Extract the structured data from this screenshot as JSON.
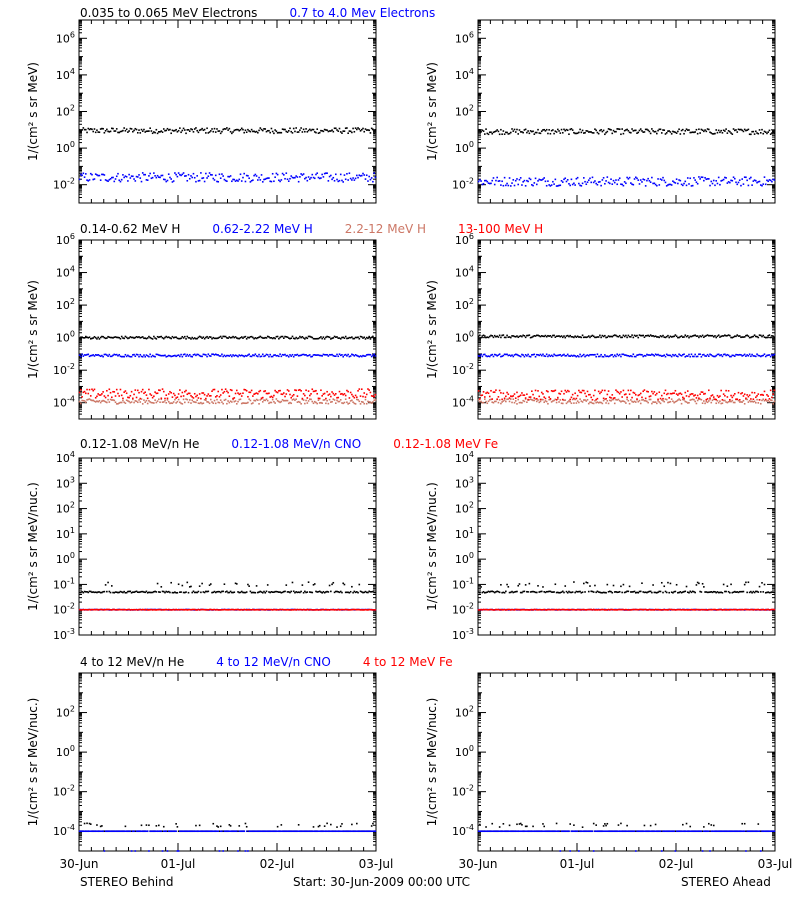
{
  "colors": {
    "black": "#000000",
    "blue": "#0000ff",
    "salmon": "#cc7766",
    "red": "#ff0000"
  },
  "x_ticks": [
    "30-Jun",
    "01-Jul",
    "02-Jul",
    "03-Jul"
  ],
  "footer": {
    "left": "STEREO Behind",
    "center": "Start: 30-Jun-2009 00:00 UTC",
    "right": "STEREO Ahead"
  },
  "chart_data": [
    {
      "type": "scatter",
      "row": "electrons",
      "ylabel": "1/(cm² s sr MeV)",
      "titles": [
        {
          "text": "0.035 to 0.065 MeV Electrons",
          "color": "#000000"
        },
        {
          "text": "0.7 to 4.0 Mev Electrons",
          "color": "#0000ff"
        }
      ],
      "yscale": "log",
      "ylim_exp": [
        -3,
        7
      ],
      "ytick_exp": [
        -2,
        0,
        2,
        4,
        6
      ],
      "xlim_days": [
        0,
        3
      ],
      "panels": [
        {
          "name": "STEREO Behind",
          "series": [
            {
              "name": "0.035 to 0.065 MeV Electrons",
              "color": "#000000",
              "level": 9,
              "spread": 0.15
            },
            {
              "name": "0.7 to 4.0 Mev Electrons",
              "color": "#0000ff",
              "level": 0.025,
              "spread": 0.25
            }
          ]
        },
        {
          "name": "STEREO Ahead",
          "series": [
            {
              "name": "0.035 to 0.065 MeV Electrons",
              "color": "#000000",
              "level": 8,
              "spread": 0.15
            },
            {
              "name": "0.7 to 4.0 Mev Electrons",
              "color": "#0000ff",
              "level": 0.015,
              "spread": 0.25
            }
          ]
        }
      ]
    },
    {
      "type": "scatter",
      "row": "protons",
      "ylabel": "1/(cm² s sr MeV)",
      "titles": [
        {
          "text": "0.14-0.62 MeV H",
          "color": "#000000"
        },
        {
          "text": "0.62-2.22 MeV H",
          "color": "#0000ff"
        },
        {
          "text": "2.2-12 MeV H",
          "color": "#cc7766"
        },
        {
          "text": "13-100 MeV H",
          "color": "#ff0000"
        }
      ],
      "yscale": "log",
      "ylim_exp": [
        -5,
        6
      ],
      "ytick_exp": [
        -4,
        -2,
        0,
        2,
        4,
        6
      ],
      "xlim_days": [
        0,
        3
      ],
      "panels": [
        {
          "name": "STEREO Behind",
          "series": [
            {
              "name": "0.14-0.62 MeV H",
              "color": "#000000",
              "level": 1.0,
              "spread": 0.08
            },
            {
              "name": "0.62-2.22 MeV H",
              "color": "#0000ff",
              "level": 0.08,
              "spread": 0.08
            },
            {
              "name": "2.2-12 MeV H",
              "color": "#cc7766",
              "level": 0.00012,
              "spread": 0.15
            },
            {
              "name": "13-100 MeV H",
              "color": "#ff0000",
              "level": 0.00035,
              "spread": 0.3
            }
          ]
        },
        {
          "name": "STEREO Ahead",
          "series": [
            {
              "name": "0.14-0.62 MeV H",
              "color": "#000000",
              "level": 1.2,
              "spread": 0.08
            },
            {
              "name": "0.62-2.22 MeV H",
              "color": "#0000ff",
              "level": 0.08,
              "spread": 0.08
            },
            {
              "name": "2.2-12 MeV H",
              "color": "#cc7766",
              "level": 0.00012,
              "spread": 0.15
            },
            {
              "name": "13-100 MeV H",
              "color": "#ff0000",
              "level": 0.0003,
              "spread": 0.3
            }
          ]
        }
      ]
    },
    {
      "type": "scatter",
      "row": "heavy_low",
      "ylabel": "1/(cm² s sr MeV/nuc.)",
      "titles": [
        {
          "text": "0.12-1.08 MeV/n He",
          "color": "#000000"
        },
        {
          "text": "0.12-1.08 MeV/n CNO",
          "color": "#0000ff"
        },
        {
          "text": "0.12-1.08 MeV Fe",
          "color": "#ff0000"
        }
      ],
      "yscale": "log",
      "ylim_exp": [
        -3,
        4
      ],
      "ytick_exp": [
        -3,
        -2,
        -1,
        0,
        1,
        2,
        3,
        4
      ],
      "xlim_days": [
        0,
        3
      ],
      "panels": [
        {
          "name": "STEREO Behind",
          "series": [
            {
              "name": "0.12-1.08 MeV/n He",
              "color": "#000000",
              "level": 0.05,
              "spread": 0.03,
              "upper": 0.1
            },
            {
              "name": "0.12-1.08 MeV/n CNO",
              "color": "#0000ff",
              "level": 0.01,
              "spread": 0.01
            },
            {
              "name": "0.12-1.08 MeV Fe",
              "color": "#ff0000",
              "level": 0.01,
              "spread": 0.01
            }
          ]
        },
        {
          "name": "STEREO Ahead",
          "series": [
            {
              "name": "0.12-1.08 MeV/n He",
              "color": "#000000",
              "level": 0.05,
              "spread": 0.03,
              "upper": 0.1
            },
            {
              "name": "0.12-1.08 MeV/n CNO",
              "color": "#0000ff",
              "level": 0.01,
              "spread": 0.01
            },
            {
              "name": "0.12-1.08 MeV Fe",
              "color": "#ff0000",
              "level": 0.01,
              "spread": 0.01
            }
          ]
        }
      ]
    },
    {
      "type": "scatter",
      "row": "heavy_high",
      "ylabel": "1/(cm² s sr MeV/nuc.)",
      "titles": [
        {
          "text": "4 to 12 MeV/n He",
          "color": "#000000"
        },
        {
          "text": "4 to 12 MeV/n CNO",
          "color": "#0000ff"
        },
        {
          "text": "4 to 12 MeV Fe",
          "color": "#ff0000"
        }
      ],
      "yscale": "log",
      "ylim_exp": [
        -5,
        4
      ],
      "ytick_exp": [
        -4,
        -2,
        0,
        2
      ],
      "xlim_days": [
        0,
        3
      ],
      "panels": [
        {
          "name": "STEREO Behind",
          "series": [
            {
              "name": "4 to 12 MeV/n He",
              "color": "#000000",
              "level": 0.0001,
              "spread": 0.0,
              "upper": 0.0002
            },
            {
              "name": "4 to 12 MeV/n CNO",
              "color": "#0000ff",
              "level": 0.0001,
              "spread": 0.0,
              "lower": 1e-05
            }
          ]
        },
        {
          "name": "STEREO Ahead",
          "series": [
            {
              "name": "4 to 12 MeV/n He",
              "color": "#000000",
              "level": 0.0001,
              "spread": 0.0,
              "upper": 0.0002
            },
            {
              "name": "4 to 12 MeV/n CNO",
              "color": "#0000ff",
              "level": 0.0001,
              "spread": 0.0,
              "lower": 1e-05
            }
          ]
        }
      ]
    }
  ]
}
